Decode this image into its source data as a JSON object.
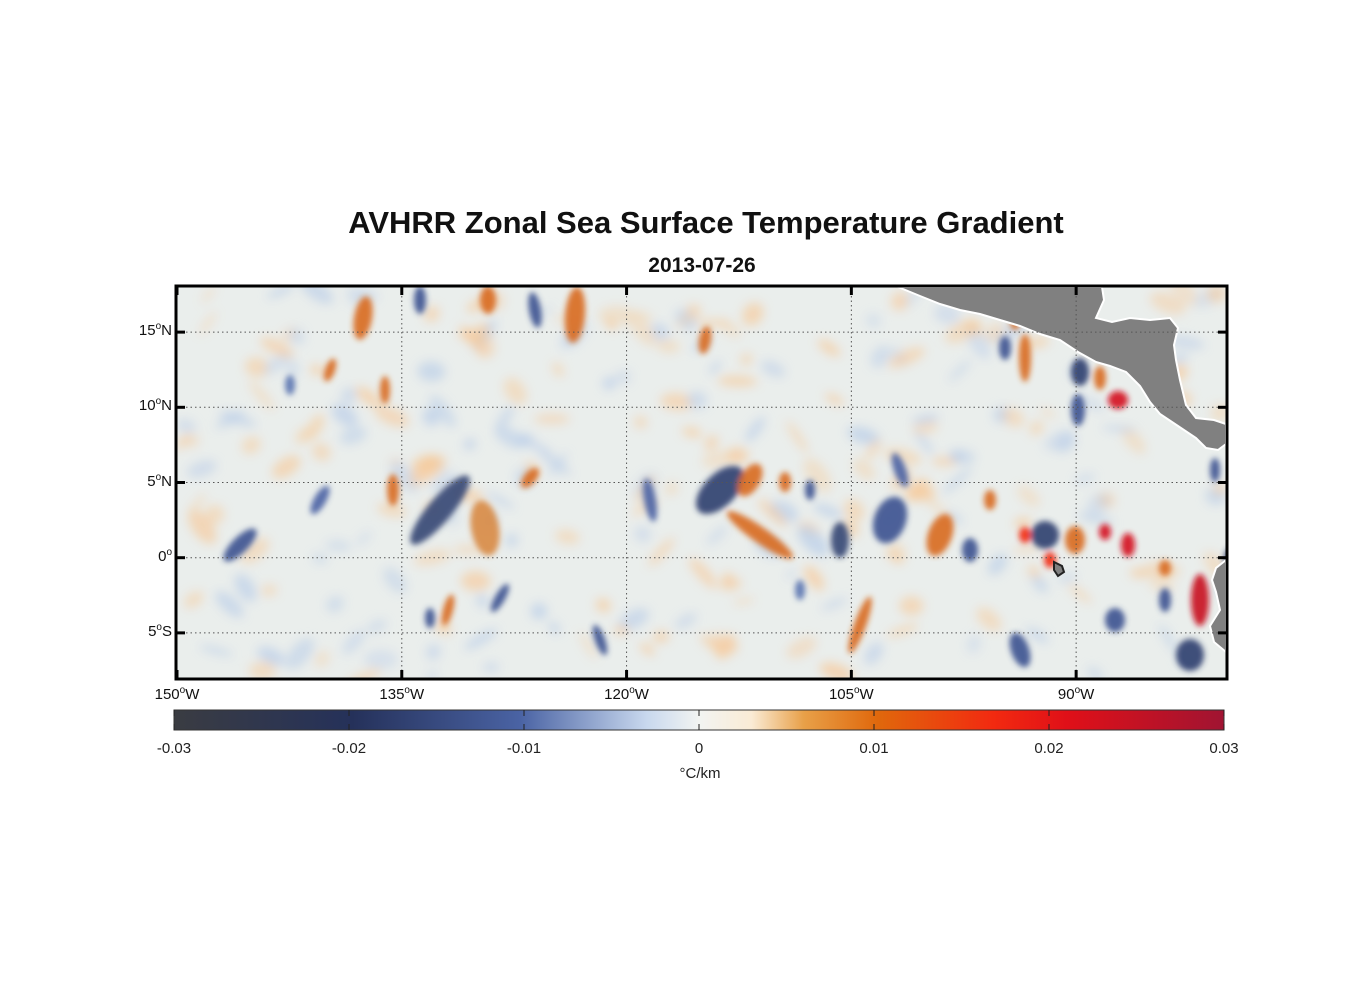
{
  "title": "AVHRR Zonal Sea Surface Temperature Gradient",
  "subtitle": "2013-07-26",
  "colors": {
    "land": "#808080",
    "frame": "#000000",
    "grid": "#555555",
    "negative_dark": "#2b3a64",
    "positive_orange": "#e0640f",
    "positive_red": "#d4101c",
    "neutral": "#e9efee"
  },
  "map": {
    "type": "heatmap",
    "projection": "lon-lat",
    "lon_range": [
      -150,
      -80
    ],
    "lat_range": [
      -8,
      18
    ],
    "lat_ticks": [
      {
        "base": "15",
        "deg": "o",
        "hemi": "N"
      },
      {
        "base": "10",
        "deg": "o",
        "hemi": "N"
      },
      {
        "base": "5",
        "deg": "o",
        "hemi": "N"
      },
      {
        "base": "0",
        "deg": "o",
        "hemi": ""
      },
      {
        "base": "5",
        "deg": "o",
        "hemi": "S"
      }
    ],
    "lon_ticks": [
      {
        "base": "150",
        "deg": "o",
        "hemi": "W"
      },
      {
        "base": "135",
        "deg": "o",
        "hemi": "W"
      },
      {
        "base": "120",
        "deg": "o",
        "hemi": "W"
      },
      {
        "base": "105",
        "deg": "o",
        "hemi": "W"
      },
      {
        "base": "90",
        "deg": "o",
        "hemi": "W"
      }
    ],
    "grid": true
  },
  "colorbar": {
    "min": -0.03,
    "max": 0.03,
    "tick_labels": [
      "-0.03",
      "-0.02",
      "-0.01",
      "0",
      "0.01",
      "0.02",
      "0.03"
    ],
    "unit": "°C/km"
  }
}
